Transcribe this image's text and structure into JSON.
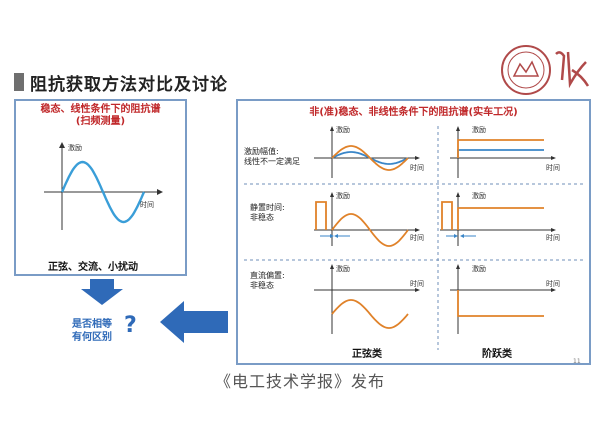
{
  "slide": {
    "title": "阻抗获取方法对比及讨论",
    "page_number": "11",
    "footer": "《电工技术学报》发布",
    "logo": {
      "name": "university-seal-logo"
    }
  },
  "left_panel": {
    "title_line1": "稳态、线性条件下的阻抗谱",
    "title_line2": "(扫频测量)",
    "y_axis_label": "激励",
    "x_axis_label": "时间",
    "caption": "正弦、交流、小扰动"
  },
  "question": {
    "line1": "是否相等",
    "line2": "有何区别",
    "mark": "?"
  },
  "right_panel": {
    "title": "非(准)稳态、非线性条件下的阻抗谱(实车工况)",
    "rows": [
      {
        "label_line1": "激励幅值:",
        "label_line2": "线性不一定满足"
      },
      {
        "label_line1": "静置时间:",
        "label_line2": "非稳态"
      },
      {
        "label_line1": "直流偏置:",
        "label_line2": "非稳态"
      }
    ],
    "axis_y": "激励",
    "axis_x": "时间",
    "col_sine": "正弦类",
    "col_step": "阶跃类"
  },
  "colors": {
    "accent_blue": "#2f6ab8",
    "title_red": "#c0282a",
    "wave_orange": "#e0822a",
    "wave_blue": "#3a86c8",
    "frame_blue": "#7a9cc6"
  }
}
